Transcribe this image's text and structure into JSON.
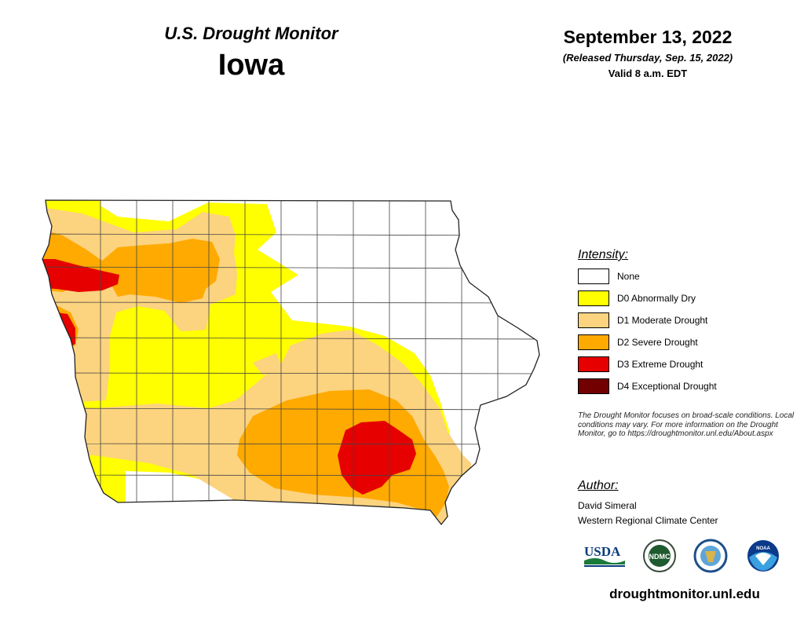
{
  "header": {
    "title": "U.S. Drought Monitor",
    "state": "Iowa",
    "date": "September 13, 2022",
    "released": "(Released Thursday, Sep. 15, 2022)",
    "valid": "Valid 8 a.m. EDT"
  },
  "legend": {
    "title": "Intensity:",
    "items": [
      {
        "label": "None",
        "color": "#ffffff"
      },
      {
        "label": "D0 Abnormally Dry",
        "color": "#ffff00"
      },
      {
        "label": "D1 Moderate Drought",
        "color": "#fcd37f"
      },
      {
        "label": "D2 Severe Drought",
        "color": "#ffaa00"
      },
      {
        "label": "D3 Extreme Drought",
        "color": "#e60000"
      },
      {
        "label": "D4 Exceptional Drought",
        "color": "#730000"
      }
    ]
  },
  "note": "The Drought Monitor focuses on broad-scale conditions. Local conditions may vary. For more information on the Drought Monitor, go to https://droughtmonitor.unl.edu/About.aspx",
  "author": {
    "title": "Author:",
    "name": "David Simeral",
    "org": "Western Regional Climate Center"
  },
  "logos": {
    "usda": "USDA",
    "ndmc": "NDMC",
    "noaa": "NOAA"
  },
  "url": "droughtmonitor.unl.edu"
}
